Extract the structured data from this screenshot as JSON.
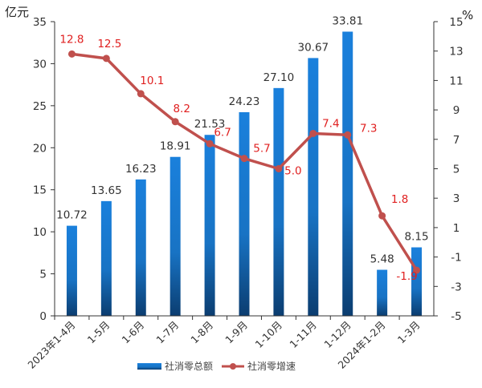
{
  "chart_data": {
    "type": "bar+line",
    "categories": [
      "2023年1-4月",
      "1-5月",
      "1-6月",
      "1-7月",
      "1-8月",
      "1-9月",
      "1-10月",
      "1-11月",
      "1-12月",
      "2024年1-2月",
      "1-3月"
    ],
    "series": [
      {
        "name": "社消零总额",
        "type": "bar",
        "axis": "left",
        "color": "#1a7ed6",
        "values": [
          10.72,
          13.65,
          16.23,
          18.91,
          21.53,
          24.23,
          27.1,
          30.67,
          33.81,
          5.48,
          8.15
        ],
        "labels": [
          "10.72",
          "13.65",
          "16.23",
          "18.91",
          "21.53",
          "24.23",
          "27.10",
          "30.67",
          "33.81",
          "5.48",
          "8.15"
        ]
      },
      {
        "name": "社消零增速",
        "type": "line",
        "axis": "right",
        "color": "#c0504d",
        "label_color": "#e02020",
        "values": [
          12.8,
          12.5,
          10.1,
          8.2,
          6.7,
          5.7,
          5.0,
          7.4,
          7.3,
          1.8,
          -1.9
        ],
        "labels": [
          "12.8",
          "12.5",
          "10.1",
          "8.2",
          "6.7",
          "5.7",
          "5.0",
          "7.4",
          "7.3",
          "1.8",
          "-1.9"
        ]
      }
    ],
    "y_left": {
      "label": "亿元",
      "range": [
        0,
        35
      ],
      "ticks": [
        "0",
        "5",
        "10",
        "15",
        "20",
        "25",
        "30",
        "35"
      ]
    },
    "y_right": {
      "label": "%",
      "range": [
        -5,
        15
      ],
      "ticks": [
        "-5",
        "-3",
        "-1",
        "1",
        "3",
        "5",
        "7",
        "9",
        "11",
        "13",
        "15"
      ]
    },
    "grid": false,
    "legend_position": "bottom-center"
  }
}
